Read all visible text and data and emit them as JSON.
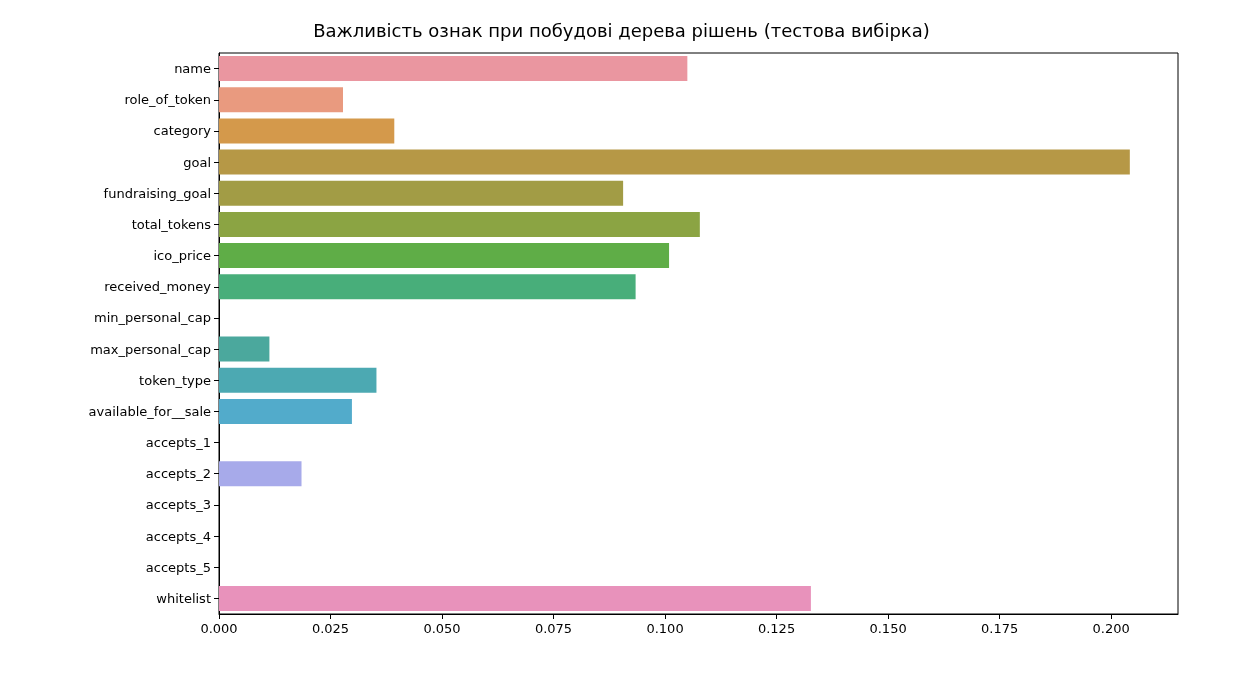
{
  "chart_data": {
    "type": "bar",
    "orientation": "horizontal",
    "title": "Важливість ознак при побудові дерева рішень (тестова вибірка)",
    "categories": [
      "name",
      "role_of_token",
      "category",
      "goal",
      "fundraising_goal",
      "total_tokens",
      "ico_price",
      "received_money",
      "min_personal_cap",
      "max_personal_cap",
      "token_type",
      "available_for__sale",
      "accepts_1",
      "accepts_2",
      "accepts_3",
      "accepts_4",
      "accepts_5",
      "whitelist"
    ],
    "values": [
      0.105,
      0.0278,
      0.0393,
      0.2042,
      0.0906,
      0.1078,
      0.1009,
      0.0934,
      0,
      0.0113,
      0.0353,
      0.0298,
      0,
      0.0185,
      0,
      0,
      0,
      0.1327
    ],
    "colors": [
      "#ea96a0",
      "#e99a7f",
      "#d4994b",
      "#b69846",
      "#a29c45",
      "#8ba443",
      "#5fad47",
      "#48ae7a",
      "#4aab90",
      "#4ba89d",
      "#4ca9b2",
      "#52abcb",
      "#5ea7e0",
      "#a7aaea",
      "#c19ceb",
      "#d99be8",
      "#e891d5",
      "#e892bb"
    ],
    "xlim": [
      0,
      0.215
    ],
    "xticks": [
      {
        "value": 0,
        "label": "0.000"
      },
      {
        "value": 0.025,
        "label": "0.025"
      },
      {
        "value": 0.05,
        "label": "0.050"
      },
      {
        "value": 0.075,
        "label": "0.075"
      },
      {
        "value": 0.1,
        "label": "0.100"
      },
      {
        "value": 0.125,
        "label": "0.125"
      },
      {
        "value": 0.15,
        "label": "0.150"
      },
      {
        "value": 0.175,
        "label": "0.175"
      },
      {
        "value": 0.2,
        "label": "0.200"
      }
    ],
    "grid": false
  }
}
